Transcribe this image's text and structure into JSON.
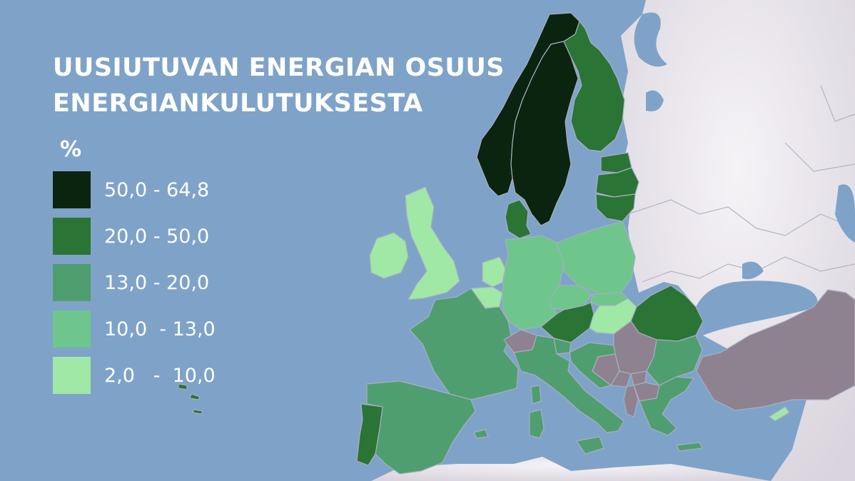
{
  "title": {
    "line1": "UUSIUTUVAN ENERGIAN OSUUS",
    "line2": "ENERGIANKULUTUKSESTA"
  },
  "legend": {
    "unit": "%",
    "classes": [
      {
        "label": "50,0 - 64,8",
        "color": "#0a2410"
      },
      {
        "label": "20,0 - 50,0",
        "color": "#2a7436"
      },
      {
        "label": "13,0 - 20,0",
        "color": "#4f9e70"
      },
      {
        "label": "10,0  - 13,0",
        "color": "#6ec68c"
      },
      {
        "label": "2,0   -  10,0",
        "color": "#9fe8a6"
      }
    ]
  },
  "colors": {
    "sea": "#7fa3c8",
    "land_other": "#e6e2ea",
    "no_data": "#8e8290",
    "border": "#a9adc0"
  },
  "countries": [
    {
      "name": "Norway",
      "class": 0
    },
    {
      "name": "Sweden",
      "class": 0
    },
    {
      "name": "Finland",
      "class": 1
    },
    {
      "name": "Latvia",
      "class": 1
    },
    {
      "name": "Estonia",
      "class": 1
    },
    {
      "name": "Lithuania",
      "class": 1
    },
    {
      "name": "Denmark",
      "class": 1
    },
    {
      "name": "Austria",
      "class": 1
    },
    {
      "name": "Romania",
      "class": 1
    },
    {
      "name": "Portugal",
      "class": 1
    },
    {
      "name": "France",
      "class": 2
    },
    {
      "name": "Spain",
      "class": 2
    },
    {
      "name": "Italy",
      "class": 2
    },
    {
      "name": "Greece",
      "class": 2
    },
    {
      "name": "Bulgaria",
      "class": 2
    },
    {
      "name": "Slovenia",
      "class": 2
    },
    {
      "name": "Croatia",
      "class": 2
    },
    {
      "name": "Germany",
      "class": 3
    },
    {
      "name": "Poland",
      "class": 3
    },
    {
      "name": "Czechia",
      "class": 3
    },
    {
      "name": "Slovakia",
      "class": 3
    },
    {
      "name": "United Kingdom",
      "class": 4
    },
    {
      "name": "Ireland",
      "class": 4
    },
    {
      "name": "Netherlands",
      "class": 4
    },
    {
      "name": "Belgium",
      "class": 4
    },
    {
      "name": "Hungary",
      "class": 4
    },
    {
      "name": "Cyprus",
      "class": 4
    },
    {
      "name": "Switzerland",
      "class": null
    },
    {
      "name": "Serbia",
      "class": null
    },
    {
      "name": "Bosnia and Herzegovina",
      "class": null
    },
    {
      "name": "Montenegro",
      "class": null
    },
    {
      "name": "Albania",
      "class": null
    },
    {
      "name": "North Macedonia",
      "class": null
    },
    {
      "name": "Kosovo",
      "class": null
    },
    {
      "name": "Turkey",
      "class": null
    }
  ]
}
